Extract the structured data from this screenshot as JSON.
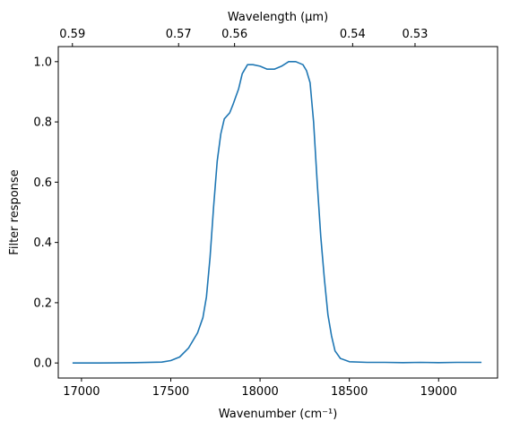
{
  "chart_data": {
    "type": "line",
    "title": "",
    "xlabel": "Wavenumber (cm⁻¹)",
    "ylabel": "Filter response",
    "top_xlabel": "Wavelength (μm)",
    "xlim": [
      16870,
      19330
    ],
    "ylim": [
      -0.05,
      1.05
    ],
    "xticks": [
      17000,
      17500,
      18000,
      18500,
      19000
    ],
    "xtick_labels": [
      "17000",
      "17500",
      "18000",
      "18500",
      "19000"
    ],
    "yticks": [
      0.0,
      0.2,
      0.4,
      0.6,
      0.8,
      1.0
    ],
    "ytick_labels": [
      "0.0",
      "0.2",
      "0.4",
      "0.6",
      "0.8",
      "1.0"
    ],
    "top_xticks": [
      0.59,
      0.57,
      0.56,
      0.54,
      0.53
    ],
    "top_xtick_labels": [
      "0.59",
      "0.57",
      "0.56",
      "0.54",
      "0.53"
    ],
    "grid": false,
    "series": [
      {
        "color": "#1f77b4",
        "points": [
          [
            16950,
            0.0
          ],
          [
            17100,
            0.0
          ],
          [
            17300,
            0.001
          ],
          [
            17450,
            0.003
          ],
          [
            17500,
            0.008
          ],
          [
            17550,
            0.02
          ],
          [
            17600,
            0.05
          ],
          [
            17650,
            0.1
          ],
          [
            17680,
            0.15
          ],
          [
            17700,
            0.22
          ],
          [
            17720,
            0.35
          ],
          [
            17740,
            0.52
          ],
          [
            17760,
            0.67
          ],
          [
            17780,
            0.76
          ],
          [
            17800,
            0.81
          ],
          [
            17830,
            0.83
          ],
          [
            17850,
            0.86
          ],
          [
            17880,
            0.91
          ],
          [
            17900,
            0.96
          ],
          [
            17930,
            0.99
          ],
          [
            17960,
            0.99
          ],
          [
            18000,
            0.985
          ],
          [
            18040,
            0.975
          ],
          [
            18080,
            0.975
          ],
          [
            18120,
            0.985
          ],
          [
            18160,
            1.0
          ],
          [
            18200,
            1.0
          ],
          [
            18240,
            0.99
          ],
          [
            18260,
            0.97
          ],
          [
            18280,
            0.93
          ],
          [
            18300,
            0.8
          ],
          [
            18320,
            0.6
          ],
          [
            18340,
            0.42
          ],
          [
            18360,
            0.28
          ],
          [
            18380,
            0.16
          ],
          [
            18400,
            0.09
          ],
          [
            18420,
            0.04
          ],
          [
            18450,
            0.015
          ],
          [
            18500,
            0.004
          ],
          [
            18600,
            0.002
          ],
          [
            18700,
            0.002
          ],
          [
            18800,
            0.001
          ],
          [
            18900,
            0.002
          ],
          [
            19000,
            0.001
          ],
          [
            19100,
            0.002
          ],
          [
            19240,
            0.002
          ]
        ]
      }
    ]
  }
}
